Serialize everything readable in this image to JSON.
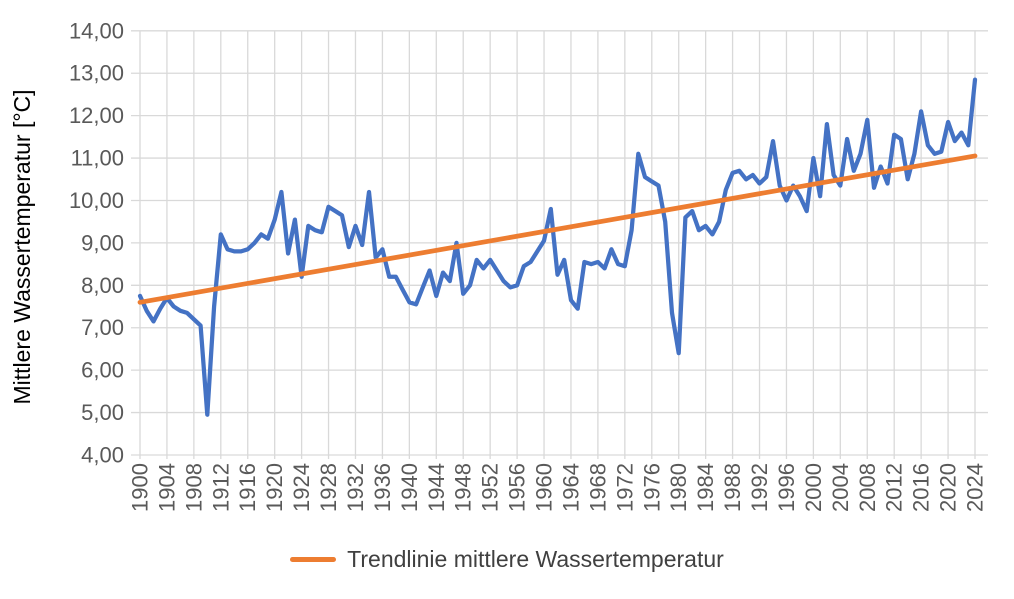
{
  "chart_data": {
    "type": "line",
    "title": "",
    "xlabel": "",
    "ylabel": "Mittlere Wassertemperatur [°C]",
    "xlim": [
      1900,
      2024
    ],
    "ylim": [
      4,
      14
    ],
    "x_tick_step": 4,
    "y_tick_step": 1,
    "grid": true,
    "legend_position": "bottom",
    "series": [
      {
        "name": "Mittlere Wassertemperatur",
        "color": "#4472C4",
        "x_start": 1900,
        "x_step": 1,
        "values": [
          7.75,
          7.4,
          7.15,
          7.45,
          7.7,
          7.5,
          7.4,
          7.35,
          7.2,
          7.05,
          4.95,
          7.5,
          9.2,
          8.85,
          8.8,
          8.8,
          8.85,
          9.0,
          9.2,
          9.1,
          9.55,
          10.2,
          8.75,
          9.55,
          8.2,
          9.4,
          9.3,
          9.25,
          9.85,
          9.75,
          9.65,
          8.9,
          9.4,
          8.95,
          10.2,
          8.65,
          8.85,
          8.2,
          8.2,
          7.9,
          7.6,
          7.55,
          7.95,
          8.35,
          7.75,
          8.3,
          8.1,
          9.0,
          7.8,
          8.0,
          8.6,
          8.4,
          8.6,
          8.35,
          8.1,
          7.95,
          8.0,
          8.45,
          8.55,
          8.8,
          9.05,
          9.8,
          8.25,
          8.6,
          7.65,
          7.45,
          8.55,
          8.5,
          8.55,
          8.4,
          8.85,
          8.5,
          8.45,
          9.3,
          11.1,
          10.55,
          10.45,
          10.35,
          9.5,
          7.35,
          6.4,
          9.6,
          9.75,
          9.3,
          9.4,
          9.2,
          9.5,
          10.25,
          10.65,
          10.7,
          10.5,
          10.6,
          10.4,
          10.55,
          11.4,
          10.35,
          10.0,
          10.35,
          10.1,
          9.75,
          11.0,
          10.1,
          11.8,
          10.6,
          10.35,
          11.45,
          10.7,
          11.1,
          11.9,
          10.3,
          10.8,
          10.4,
          11.55,
          11.45,
          10.5,
          11.1,
          12.1,
          11.3,
          11.1,
          11.15,
          11.85,
          11.4,
          11.6,
          11.3,
          12.85
        ]
      }
    ],
    "trendline": {
      "name": "Trendlinie mittlere Wassertemperatur",
      "color": "#ED7D31",
      "start": {
        "year": 1900,
        "value": 7.6
      },
      "end": {
        "year": 2024,
        "value": 11.05
      }
    }
  },
  "axes": {
    "y_title": "Mittlere Wassertemperatur [°C]",
    "y_tick_labels": [
      "14,00",
      "13,00",
      "12,00",
      "11,00",
      "10,00",
      "9,00",
      "8,00",
      "7,00",
      "6,00",
      "5,00",
      "4,00"
    ],
    "y_tick_values": [
      14,
      13,
      12,
      11,
      10,
      9,
      8,
      7,
      6,
      5,
      4
    ],
    "x_tick_labels": [
      "1900",
      "1904",
      "1908",
      "1912",
      "1916",
      "1920",
      "1924",
      "1928",
      "1932",
      "1936",
      "1940",
      "1944",
      "1948",
      "1952",
      "1956",
      "1960",
      "1964",
      "1968",
      "1972",
      "1976",
      "1980",
      "1984",
      "1988",
      "1992",
      "1996",
      "2000",
      "2004",
      "2008",
      "2012",
      "2016",
      "2020",
      "2024"
    ],
    "x_tick_values": [
      1900,
      1904,
      1908,
      1912,
      1916,
      1920,
      1924,
      1928,
      1932,
      1936,
      1940,
      1944,
      1948,
      1952,
      1956,
      1960,
      1964,
      1968,
      1972,
      1976,
      1980,
      1984,
      1988,
      1992,
      1996,
      2000,
      2004,
      2008,
      2012,
      2016,
      2020,
      2024
    ]
  },
  "legend": {
    "label": "Trendlinie mittlere Wassertemperatur",
    "swatch_color": "#ED7D31"
  },
  "colors": {
    "series_line": "#4472C4",
    "trend_line": "#ED7D31",
    "gridline": "#D9D9D9",
    "tick_label": "#595959",
    "axis_title": "#000000",
    "legend_text": "#404040",
    "background": "#FFFFFF"
  }
}
